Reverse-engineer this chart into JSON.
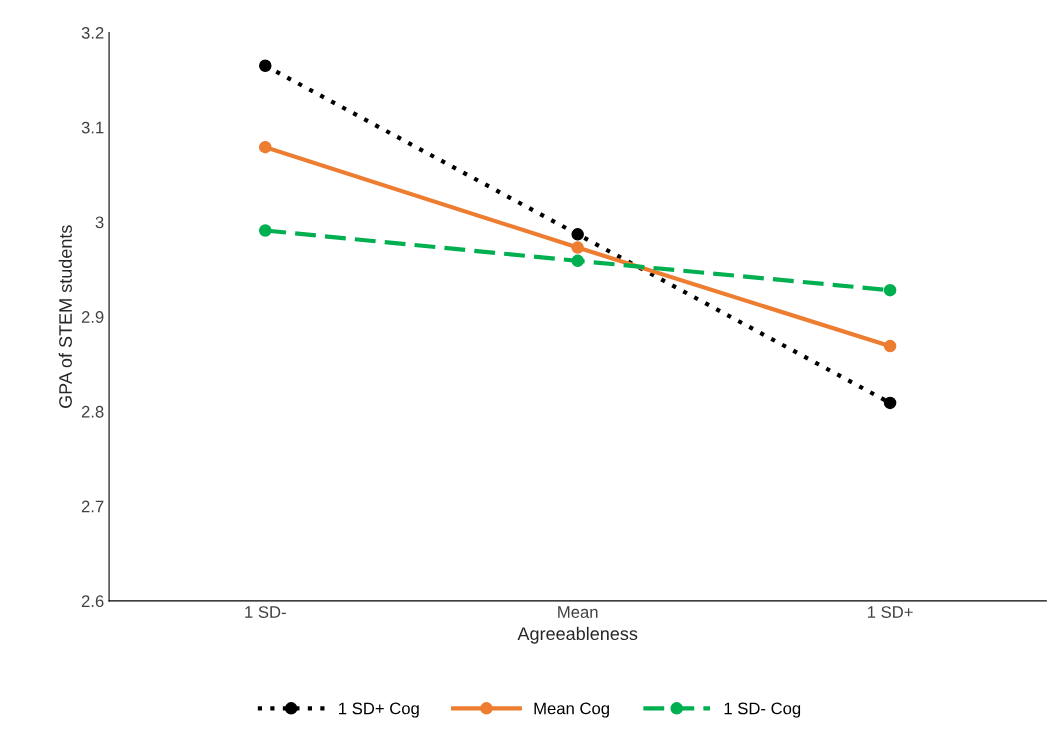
{
  "chart_data": {
    "type": "line",
    "xlabel": "Agreeableness",
    "ylabel": "GPA of STEM students",
    "categories": [
      "1 SD-",
      "Mean",
      "1 SD+"
    ],
    "series": [
      {
        "name": "1 SD+ Cog",
        "color": "#000000",
        "values": [
          3.165,
          2.987,
          2.809
        ],
        "line_style": "dotted"
      },
      {
        "name": "Mean Cog",
        "color": "#ed7d31",
        "values": [
          3.079,
          2.973,
          2.869
        ],
        "line_style": "solid"
      },
      {
        "name": "1 SD- Cog",
        "color": "#00b050",
        "values": [
          2.991,
          2.959,
          2.928
        ],
        "line_style": "dashed"
      }
    ],
    "ylim": [
      2.6,
      3.2
    ],
    "yticks": [
      2.6,
      2.7,
      2.8,
      2.9,
      {
        "value": 3,
        "label": "3"
      },
      3.1,
      3.2
    ],
    "marker": "circle",
    "grid": false,
    "legend": "bottom"
  }
}
